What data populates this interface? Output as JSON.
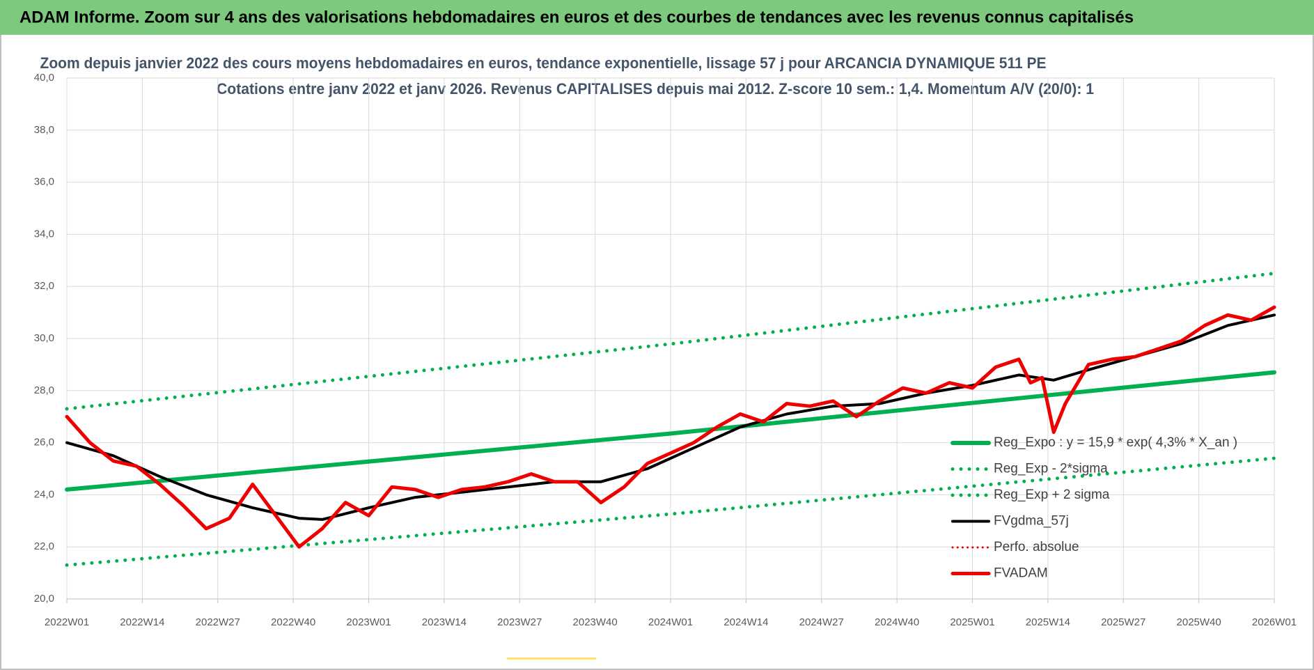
{
  "chart_data": {
    "type": "line",
    "banner": "ADAM Informe. Zoom sur 4 ans des valorisations hebdomadaires en euros et des courbes de tendances avec les revenus connus capitalisés",
    "title": "Zoom depuis janvier 2022 des cours moyens hebdomadaires en euros, tendance exponentielle, lissage 57 j pour ARCANCIA DYNAMIQUE 511 PE",
    "subtitle": "Cotations entre janv 2022 et janv 2026. Revenus CAPITALISES depuis mai 2012. Z-score 10 sem.: 1,4. Momentum A/V (20/0): 1",
    "xlim": [
      0,
      208
    ],
    "xticks": [
      {
        "value": 0,
        "label": "2022W01"
      },
      {
        "value": 13,
        "label": "2022W14"
      },
      {
        "value": 26,
        "label": "2022W27"
      },
      {
        "value": 39,
        "label": "2022W40"
      },
      {
        "value": 52,
        "label": "2023W01"
      },
      {
        "value": 65,
        "label": "2023W14"
      },
      {
        "value": 78,
        "label": "2023W27"
      },
      {
        "value": 91,
        "label": "2023W40"
      },
      {
        "value": 104,
        "label": "2024W01"
      },
      {
        "value": 117,
        "label": "2024W14"
      },
      {
        "value": 130,
        "label": "2024W27"
      },
      {
        "value": 143,
        "label": "2024W40"
      },
      {
        "value": 156,
        "label": "2025W01"
      },
      {
        "value": 169,
        "label": "2025W14"
      },
      {
        "value": 182,
        "label": "2025W27"
      },
      {
        "value": 195,
        "label": "2025W40"
      },
      {
        "value": 208,
        "label": "2026W01"
      }
    ],
    "ylim": [
      20,
      40
    ],
    "yticks": [
      {
        "value": 20,
        "label": "20,0"
      },
      {
        "value": 22,
        "label": "22,0"
      },
      {
        "value": 24,
        "label": "24,0"
      },
      {
        "value": 26,
        "label": "26,0"
      },
      {
        "value": 28,
        "label": "28,0"
      },
      {
        "value": 30,
        "label": "30,0"
      },
      {
        "value": 32,
        "label": "32,0"
      },
      {
        "value": 34,
        "label": "34,0"
      },
      {
        "value": 36,
        "label": "36,0"
      },
      {
        "value": 38,
        "label": "38,0"
      },
      {
        "value": 40,
        "label": "40,0"
      }
    ],
    "grid": true,
    "legend": "lower-right",
    "series": [
      {
        "name": "Reg_Expo : y = 15,9 * exp( 4,3% *  X_an )",
        "color": "#00b050",
        "line_style": "solid",
        "line_width": 6,
        "x": [
          0,
          104,
          208
        ],
        "values": [
          24.2,
          26.35,
          28.7
        ]
      },
      {
        "name": "Reg_Exp - 2*sigma",
        "color": "#00b050",
        "line_style": "dotted",
        "line_width": 5,
        "x": [
          0,
          104,
          208
        ],
        "values": [
          21.3,
          23.26,
          25.4
        ]
      },
      {
        "name": "Reg_Exp + 2 sigma",
        "color": "#00b050",
        "line_style": "dotted",
        "line_width": 5,
        "x": [
          0,
          104,
          208
        ],
        "values": [
          27.3,
          29.79,
          32.5
        ]
      },
      {
        "name": "FVgdma_57j",
        "color": "#000000",
        "line_style": "solid",
        "line_width": 4,
        "x": [
          0,
          8,
          16,
          24,
          32,
          40,
          44,
          52,
          60,
          68,
          76,
          84,
          92,
          100,
          108,
          116,
          124,
          132,
          140,
          148,
          156,
          164,
          170,
          176,
          184,
          192,
          200,
          208
        ],
        "values": [
          26.0,
          25.5,
          24.7,
          24.0,
          23.5,
          23.1,
          23.05,
          23.5,
          23.9,
          24.1,
          24.3,
          24.5,
          24.5,
          25.0,
          25.8,
          26.6,
          27.1,
          27.4,
          27.5,
          27.9,
          28.2,
          28.6,
          28.4,
          28.8,
          29.3,
          29.8,
          30.5,
          30.9
        ]
      },
      {
        "name": "Perfo. absolue",
        "color": "#e00000",
        "line_style": "dotted",
        "line_width": 3,
        "x": [],
        "values": []
      },
      {
        "name": "FVADAM",
        "color": "#ee0000",
        "line_style": "solid",
        "line_width": 5,
        "x": [
          0,
          4,
          8,
          12,
          16,
          20,
          24,
          28,
          32,
          36,
          40,
          44,
          48,
          52,
          56,
          60,
          64,
          68,
          72,
          76,
          80,
          84,
          88,
          92,
          96,
          100,
          104,
          108,
          112,
          116,
          120,
          124,
          128,
          132,
          136,
          140,
          144,
          148,
          152,
          156,
          160,
          164,
          166,
          168,
          170,
          172,
          176,
          180,
          184,
          188,
          192,
          196,
          200,
          204,
          208
        ],
        "values": [
          27.0,
          26.0,
          25.3,
          25.1,
          24.4,
          23.6,
          22.7,
          23.1,
          24.4,
          23.2,
          22.0,
          22.7,
          23.7,
          23.2,
          24.3,
          24.2,
          23.9,
          24.2,
          24.3,
          24.5,
          24.8,
          24.5,
          24.5,
          23.7,
          24.3,
          25.2,
          25.6,
          26.0,
          26.6,
          27.1,
          26.8,
          27.5,
          27.4,
          27.6,
          27.0,
          27.6,
          28.1,
          27.9,
          28.3,
          28.1,
          28.9,
          29.2,
          28.3,
          28.5,
          26.4,
          27.5,
          29.0,
          29.2,
          29.3,
          29.6,
          29.9,
          30.5,
          30.9,
          30.7,
          31.2
        ]
      }
    ]
  }
}
